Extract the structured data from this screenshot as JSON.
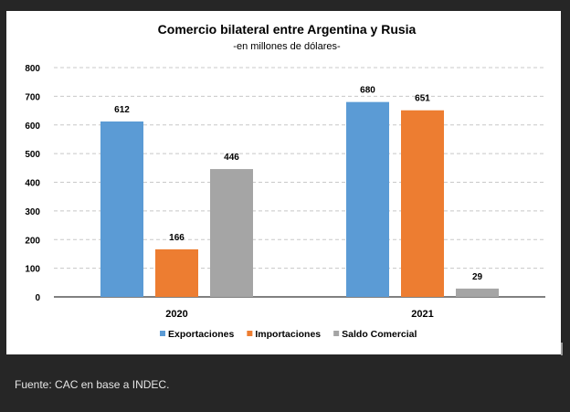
{
  "chart_data": {
    "type": "bar",
    "title": "Comercio bilateral entre Argentina y Rusia",
    "subtitle": "-en millones de dólares-",
    "categories": [
      "2020",
      "2021"
    ],
    "series": [
      {
        "name": "Exportaciones",
        "color": "#5b9bd5",
        "values": [
          612,
          680
        ]
      },
      {
        "name": "Importaciones",
        "color": "#ed7d31",
        "values": [
          166,
          651
        ]
      },
      {
        "name": "Saldo Comercial",
        "color": "#a5a5a5",
        "values": [
          446,
          29
        ]
      }
    ],
    "ylim": [
      0,
      800
    ],
    "yticks": [
      0,
      100,
      200,
      300,
      400,
      500,
      600,
      700,
      800
    ],
    "grid": "dashed horizontal",
    "legend_position": "bottom"
  },
  "footer": {
    "source": "Fuente: CAC en base a INDEC."
  }
}
